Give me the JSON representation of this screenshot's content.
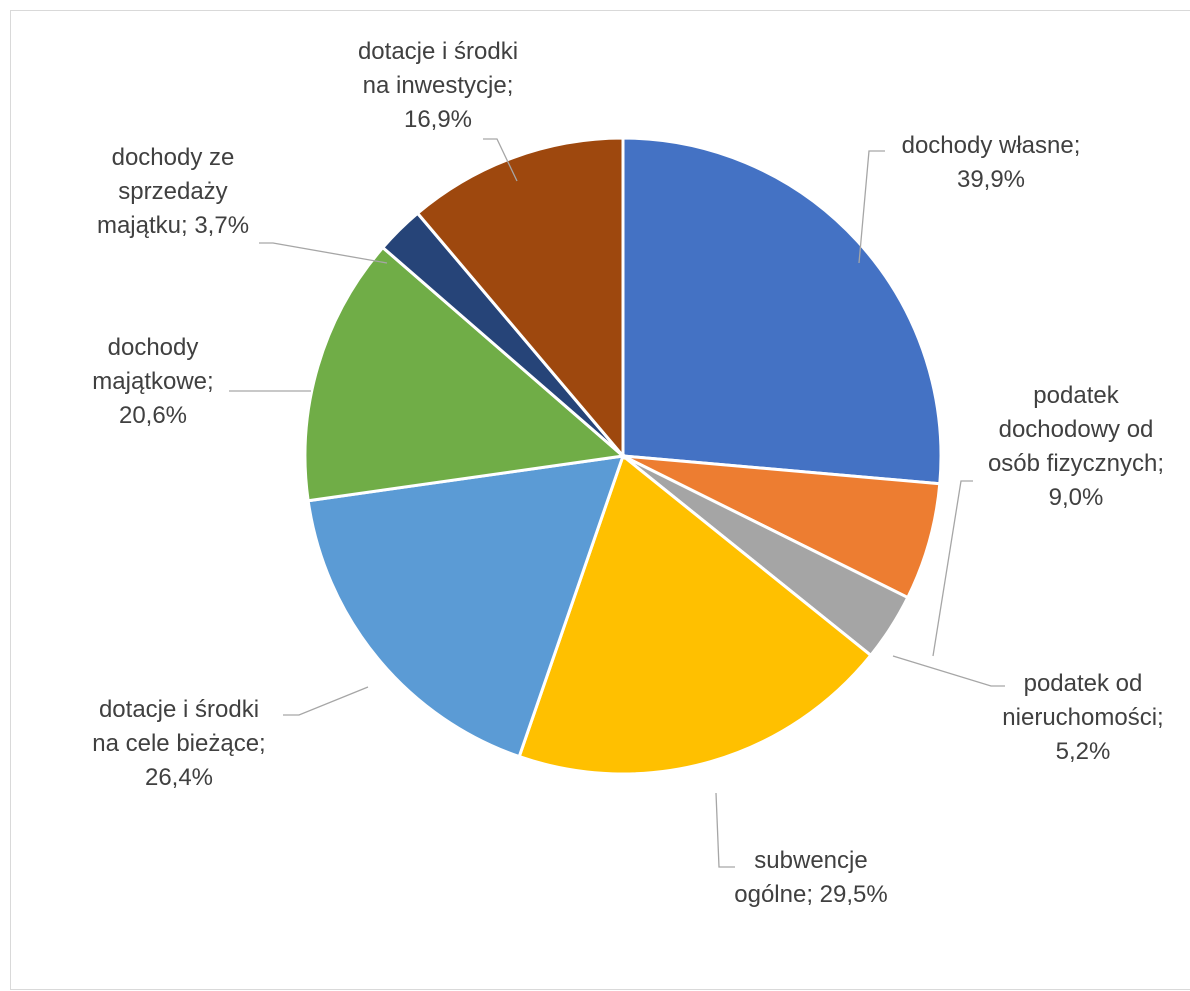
{
  "chart_data": {
    "type": "pie",
    "title": "",
    "start_angle_deg": 0,
    "direction": "clockwise",
    "slices": [
      {
        "label": "dochody własne; 39,9%",
        "name": "dochody własne",
        "value": 39.9,
        "color": "#4472C4"
      },
      {
        "label": "podatek dochodowy od osób fizycznych; 9,0%",
        "name": "podatek dochodowy od osób fizycznych",
        "value": 9.0,
        "color": "#ED7D31"
      },
      {
        "label": "podatek od nieruchomości; 5,2%",
        "name": "podatek od nieruchomości",
        "value": 5.2,
        "color": "#A5A5A5"
      },
      {
        "label": "subwencje ogólne; 29,5%",
        "name": "subwencje ogólne",
        "value": 29.5,
        "color": "#FFC000"
      },
      {
        "label": "dotacje i środki na cele bieżące; 26,4%",
        "name": "dotacje i środki na cele bieżące",
        "value": 26.4,
        "color": "#5B9BD5"
      },
      {
        "label": "dochody majątkowe; 20,6%",
        "name": "dochody majątkowe",
        "value": 20.6,
        "color": "#70AD47"
      },
      {
        "label": "dochody ze sprzedaży majątku; 3,7%",
        "name": "dochody ze sprzedaży majątku",
        "value": 3.7,
        "color": "#264478"
      },
      {
        "label": "dotacje i środki na inwestycje; 16,9%",
        "name": "dotacje i środki na inwestycje",
        "value": 16.9,
        "color": "#9E480E"
      }
    ]
  }
}
